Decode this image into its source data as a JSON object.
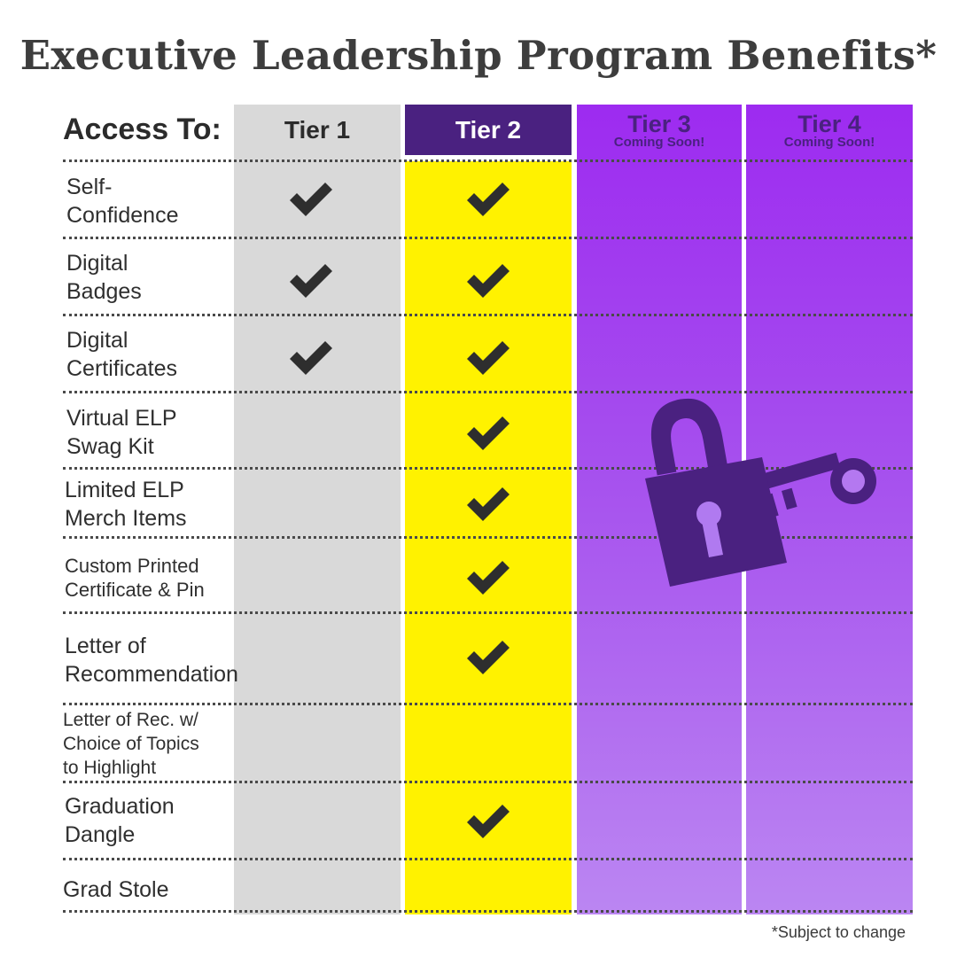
{
  "title": "Executive Leadership Program Benefits*",
  "header": {
    "access_label": "Access To:",
    "tiers": [
      {
        "label": "Tier 1",
        "note": ""
      },
      {
        "label": "Tier 2",
        "note": ""
      },
      {
        "label": "Tier 3",
        "note": "Coming Soon!"
      },
      {
        "label": "Tier 4",
        "note": "Coming Soon!"
      }
    ]
  },
  "rows": [
    {
      "label_lines": [
        "Self-",
        "Confidence"
      ],
      "tier1": true,
      "tier2": true
    },
    {
      "label_lines": [
        "Digital",
        "Badges"
      ],
      "tier1": true,
      "tier2": true
    },
    {
      "label_lines": [
        "Digital",
        "Certificates"
      ],
      "tier1": true,
      "tier2": true
    },
    {
      "label_lines": [
        "Virtual ELP",
        "Swag Kit"
      ],
      "tier1": false,
      "tier2": true
    },
    {
      "label_lines": [
        "Limited ELP",
        "Merch Items"
      ],
      "tier1": false,
      "tier2": true
    },
    {
      "label_lines": [
        "Custom Printed",
        "Certificate & Pin"
      ],
      "tier1": false,
      "tier2": true
    },
    {
      "label_lines": [
        "Letter of",
        "Recommendation"
      ],
      "tier1": false,
      "tier2": true
    },
    {
      "label_lines": [
        "Letter of Rec. w/",
        "Choice of Topics",
        "to Highlight"
      ],
      "tier1": false,
      "tier2": false
    },
    {
      "label_lines": [
        "Graduation",
        "Dangle"
      ],
      "tier1": false,
      "tier2": true
    },
    {
      "label_lines": [
        "Grad Stole"
      ],
      "tier1": false,
      "tier2": false
    }
  ],
  "icons": {
    "check": "checkmark-icon",
    "locked_tiers": "lock-and-key-icon"
  },
  "colors": {
    "tier1": "#d9d9d9",
    "tier2": "#fff200",
    "tier2_header": "#4a2180",
    "tier3_4": "#9d2bf0",
    "lock": "#4a2180"
  },
  "footnote": "*Subject to change"
}
